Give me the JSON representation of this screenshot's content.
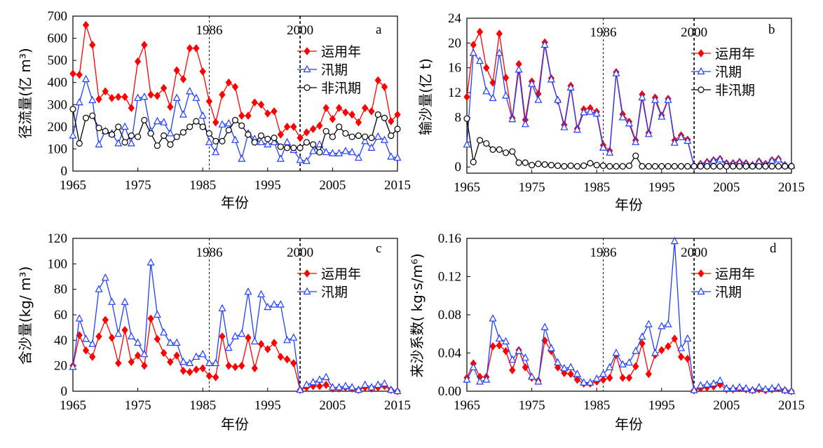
{
  "figure_title": "",
  "colors": {
    "annual": "#ff0000",
    "flood": "#1f3fff",
    "nonflood": "#000000"
  },
  "chart_data": [
    {
      "id": "a",
      "type": "line",
      "panel_letter": "a",
      "xlabel": "年份",
      "ylabel": "径流量(亿 m³)",
      "xlim": [
        1965,
        2015
      ],
      "ylim": [
        0,
        700
      ],
      "xticks": [
        1965,
        1975,
        1985,
        1995,
        2005,
        2015
      ],
      "yticks": [
        0,
        100,
        200,
        300,
        400,
        500,
        600,
        700
      ],
      "ytick_labels": [
        "0",
        "100",
        "200",
        "300",
        "400",
        "500",
        "600",
        "700"
      ],
      "reference_lines": [
        {
          "x": 1986,
          "label": "1986"
        },
        {
          "x": 2000,
          "label": "2000"
        }
      ],
      "legend_position": "top-right",
      "x": [
        1965,
        1966,
        1967,
        1968,
        1969,
        1970,
        1971,
        1972,
        1973,
        1974,
        1975,
        1976,
        1977,
        1978,
        1979,
        1980,
        1981,
        1982,
        1983,
        1984,
        1985,
        1986,
        1987,
        1988,
        1989,
        1990,
        1991,
        1992,
        1993,
        1994,
        1995,
        1996,
        1997,
        1998,
        1999,
        2000,
        2001,
        2002,
        2003,
        2004,
        2005,
        2006,
        2007,
        2008,
        2009,
        2010,
        2011,
        2012,
        2013,
        2014,
        2015
      ],
      "series": [
        {
          "name": "运用年",
          "marker": "diamond",
          "color_key": "annual",
          "values": [
            440,
            435,
            660,
            570,
            325,
            360,
            330,
            335,
            335,
            285,
            495,
            570,
            345,
            340,
            375,
            290,
            455,
            415,
            555,
            555,
            450,
            315,
            220,
            345,
            400,
            380,
            250,
            250,
            310,
            300,
            260,
            270,
            165,
            200,
            200,
            150,
            175,
            190,
            205,
            285,
            235,
            285,
            265,
            255,
            220,
            285,
            270,
            410,
            380,
            225,
            255
          ]
        },
        {
          "name": "汛期",
          "marker": "triangle",
          "color_key": "flood",
          "values": [
            160,
            310,
            415,
            320,
            120,
            180,
            170,
            125,
            200,
            125,
            330,
            335,
            180,
            225,
            220,
            170,
            330,
            255,
            360,
            330,
            250,
            130,
            85,
            210,
            215,
            140,
            55,
            170,
            145,
            130,
            120,
            130,
            55,
            130,
            95,
            50,
            45,
            90,
            120,
            85,
            80,
            80,
            90,
            85,
            60,
            135,
            105,
            155,
            140,
            65,
            60
          ]
        },
        {
          "name": "非汛期",
          "marker": "circle",
          "color_key": "nonflood",
          "values": [
            280,
            125,
            240,
            250,
            195,
            180,
            165,
            200,
            130,
            160,
            155,
            230,
            170,
            115,
            160,
            120,
            155,
            175,
            200,
            225,
            200,
            170,
            135,
            135,
            185,
            230,
            205,
            165,
            130,
            160,
            145,
            150,
            110,
            105,
            105,
            105,
            130,
            120,
            85,
            180,
            155,
            200,
            170,
            155,
            160,
            155,
            150,
            255,
            240,
            160,
            190
          ]
        }
      ]
    },
    {
      "id": "b",
      "type": "line",
      "panel_letter": "b",
      "xlabel": "年份",
      "ylabel": "输沙量(亿 t)",
      "xlim": [
        1965,
        2015
      ],
      "ylim": [
        -1,
        24
      ],
      "xticks": [
        1965,
        1975,
        1985,
        1995,
        2005,
        2015
      ],
      "yticks": [
        0,
        4,
        8,
        12,
        16,
        20,
        24
      ],
      "ytick_labels": [
        "0",
        "",
        "8",
        "12",
        "16",
        "20",
        "24"
      ],
      "reference_lines": [
        {
          "x": 1986,
          "label": "1986"
        },
        {
          "x": 2000,
          "label": "2000"
        }
      ],
      "legend_position": "top-right",
      "x": [
        1965,
        1966,
        1967,
        1968,
        1969,
        1970,
        1971,
        1972,
        1973,
        1974,
        1975,
        1976,
        1977,
        1978,
        1979,
        1980,
        1981,
        1982,
        1983,
        1984,
        1985,
        1986,
        1987,
        1988,
        1989,
        1990,
        1991,
        1992,
        1993,
        1994,
        1995,
        1996,
        1997,
        1998,
        1999,
        2000,
        2001,
        2002,
        2003,
        2004,
        2005,
        2006,
        2007,
        2008,
        2009,
        2010,
        2011,
        2012,
        2013,
        2014,
        2015
      ],
      "series": [
        {
          "name": "运用年",
          "marker": "diamond",
          "color_key": "annual",
          "values": [
            11.3,
            19.7,
            21.8,
            16,
            13.6,
            21.5,
            14.4,
            7.9,
            16.6,
            7.6,
            13.8,
            11.8,
            20.1,
            14.3,
            10.7,
            6.8,
            13.1,
            6.2,
            9.3,
            9.5,
            8.9,
            3.5,
            2.6,
            15.3,
            8.5,
            7.3,
            4.3,
            11.7,
            5.5,
            11.2,
            8.3,
            11,
            4.3,
            5.1,
            4.4,
            0.2,
            0.5,
            0.8,
            1.1,
            1.3,
            0.6,
            0.6,
            0.8,
            0.6,
            0.3,
            0.9,
            0.5,
            1.1,
            1.3,
            0.3,
            0.2
          ]
        },
        {
          "name": "汛期",
          "marker": "triangle",
          "color_key": "flood",
          "values": [
            3.6,
            18.4,
            17.1,
            12.2,
            11.1,
            18.4,
            11.5,
            7.7,
            15.7,
            6.9,
            13.4,
            10.8,
            19.7,
            14.1,
            10.8,
            6.4,
            12.8,
            6,
            8.8,
            8.9,
            8.6,
            3.1,
            2.3,
            15.1,
            8,
            7,
            4,
            11.2,
            5.3,
            10.8,
            8.1,
            10.8,
            3.9,
            4.8,
            4.2,
            0.2,
            0.4,
            0.7,
            1,
            1.2,
            0.5,
            0.5,
            0.7,
            0.5,
            0.3,
            0.8,
            0.4,
            1,
            1.2,
            0.3,
            0.2
          ]
        },
        {
          "name": "非汛期",
          "marker": "circle",
          "color_key": "nonflood",
          "values": [
            7.8,
            0.8,
            4.3,
            3.8,
            2.8,
            2.8,
            2.3,
            2.5,
            0.7,
            0.7,
            0.3,
            0.5,
            0.4,
            0.3,
            0.2,
            0.1,
            0.2,
            0.1,
            0.2,
            0.6,
            0.3,
            0.2,
            0.1,
            0.1,
            0.1,
            0.2,
            1.8,
            0.1,
            0.1,
            0.1,
            0.1,
            0.1,
            0.1,
            0.1,
            0.1,
            0.1,
            0.1,
            0.1,
            0.1,
            0.1,
            0.1,
            0.1,
            0.1,
            0.1,
            0.1,
            0.1,
            0.1,
            0.1,
            0.1,
            0.1,
            0.1
          ]
        }
      ]
    },
    {
      "id": "c",
      "type": "line",
      "panel_letter": "c",
      "xlabel": "年份",
      "ylabel": "含沙量(kg/ m³)",
      "xlim": [
        1965,
        2015
      ],
      "ylim": [
        0,
        120
      ],
      "xticks": [
        1965,
        1975,
        1985,
        1995,
        2005,
        2015
      ],
      "yticks": [
        0,
        20,
        40,
        60,
        80,
        100,
        120
      ],
      "ytick_labels": [
        "0",
        "20",
        "40",
        "60",
        "80",
        "100",
        "120"
      ],
      "reference_lines": [
        {
          "x": 1986,
          "label": "1986"
        },
        {
          "x": 2000,
          "label": "2000"
        }
      ],
      "legend_position": "top-right",
      "x": [
        1965,
        1966,
        1967,
        1968,
        1969,
        1970,
        1971,
        1972,
        1973,
        1974,
        1975,
        1976,
        1977,
        1978,
        1979,
        1980,
        1981,
        1982,
        1983,
        1984,
        1985,
        1986,
        1987,
        1988,
        1989,
        1990,
        1991,
        1992,
        1993,
        1994,
        1995,
        1996,
        1997,
        1998,
        1999,
        2000,
        2001,
        2002,
        2003,
        2004,
        2005,
        2006,
        2007,
        2008,
        2009,
        2010,
        2011,
        2012,
        2013,
        2014,
        2015
      ],
      "series": [
        {
          "name": "运用年",
          "marker": "diamond",
          "color_key": "annual",
          "values": [
            20,
            44,
            32,
            27,
            43,
            56,
            42,
            22,
            48,
            23,
            28,
            20,
            57,
            41,
            30,
            23,
            28,
            16,
            15,
            17,
            18,
            12,
            11,
            43,
            20,
            19,
            20,
            42,
            18,
            37,
            33,
            38,
            27,
            25,
            22,
            1,
            3,
            4,
            4,
            5,
            2,
            2,
            3,
            2,
            1,
            3,
            2,
            3,
            4,
            1,
            0
          ]
        },
        {
          "name": "汛期",
          "marker": "triangle",
          "color_key": "flood",
          "values": [
            19,
            57,
            41,
            37,
            80,
            89,
            70,
            45,
            70,
            43,
            38,
            29,
            101,
            60,
            46,
            38,
            38,
            23,
            22,
            27,
            29,
            22,
            22,
            65,
            34,
            43,
            45,
            78,
            39,
            76,
            66,
            68,
            68,
            40,
            42,
            1,
            5,
            7,
            9,
            11,
            3,
            3,
            4,
            3,
            1,
            5,
            3,
            5,
            6,
            1,
            0
          ]
        }
      ]
    },
    {
      "id": "d",
      "type": "line",
      "panel_letter": "d",
      "xlabel": "年份",
      "ylabel": "来沙系数( kg·s/m⁶)",
      "xlim": [
        1965,
        2015
      ],
      "ylim": [
        0,
        0.16
      ],
      "xticks": [
        1965,
        1975,
        1985,
        1995,
        2005,
        2015
      ],
      "yticks": [
        0,
        0.04,
        0.08,
        0.12,
        0.16
      ],
      "ytick_labels": [
        "0.00",
        "0.04",
        "0.08",
        "0.12",
        "0.16"
      ],
      "reference_lines": [
        {
          "x": 1986,
          "label": "1986"
        },
        {
          "x": 2000,
          "label": "2000"
        }
      ],
      "legend_position": "top-right",
      "x": [
        1965,
        1966,
        1967,
        1968,
        1969,
        1970,
        1971,
        1972,
        1973,
        1974,
        1975,
        1976,
        1977,
        1978,
        1979,
        1980,
        1981,
        1982,
        1983,
        1984,
        1985,
        1986,
        1987,
        1988,
        1989,
        1990,
        1991,
        1992,
        1993,
        1994,
        1995,
        1996,
        1997,
        1998,
        1999,
        2000,
        2001,
        2002,
        2003,
        2004,
        2005,
        2006,
        2007,
        2008,
        2009,
        2010,
        2011,
        2012,
        2013,
        2014,
        2015
      ],
      "series": [
        {
          "name": "运用年",
          "marker": "diamond",
          "color_key": "annual",
          "values": [
            0.014,
            0.029,
            0.015,
            0.015,
            0.047,
            0.048,
            0.042,
            0.022,
            0.043,
            0.025,
            0.014,
            0.011,
            0.053,
            0.042,
            0.025,
            0.019,
            0.018,
            0.012,
            0.008,
            0.008,
            0.01,
            0.012,
            0.014,
            0.038,
            0.014,
            0.014,
            0.026,
            0.05,
            0.018,
            0.038,
            0.043,
            0.047,
            0.055,
            0.036,
            0.034,
            0.001,
            0.003,
            0.004,
            0.005,
            0.007,
            0.002,
            0.002,
            0.003,
            0.002,
            0.001,
            0.002,
            0.001,
            0.002,
            0.003,
            0.001,
            0.0
          ]
        },
        {
          "name": "汛期",
          "marker": "triangle",
          "color_key": "flood",
          "values": [
            0.012,
            0.025,
            0.01,
            0.012,
            0.076,
            0.055,
            0.052,
            0.033,
            0.042,
            0.035,
            0.015,
            0.01,
            0.067,
            0.045,
            0.03,
            0.024,
            0.025,
            0.018,
            0.009,
            0.009,
            0.013,
            0.018,
            0.025,
            0.04,
            0.028,
            0.03,
            0.042,
            0.057,
            0.07,
            0.04,
            0.068,
            0.07,
            0.157,
            0.045,
            0.055,
            0.001,
            0.006,
            0.007,
            0.008,
            0.011,
            0.003,
            0.003,
            0.004,
            0.003,
            0.001,
            0.004,
            0.002,
            0.003,
            0.004,
            0.001,
            0.0
          ]
        }
      ]
    }
  ]
}
